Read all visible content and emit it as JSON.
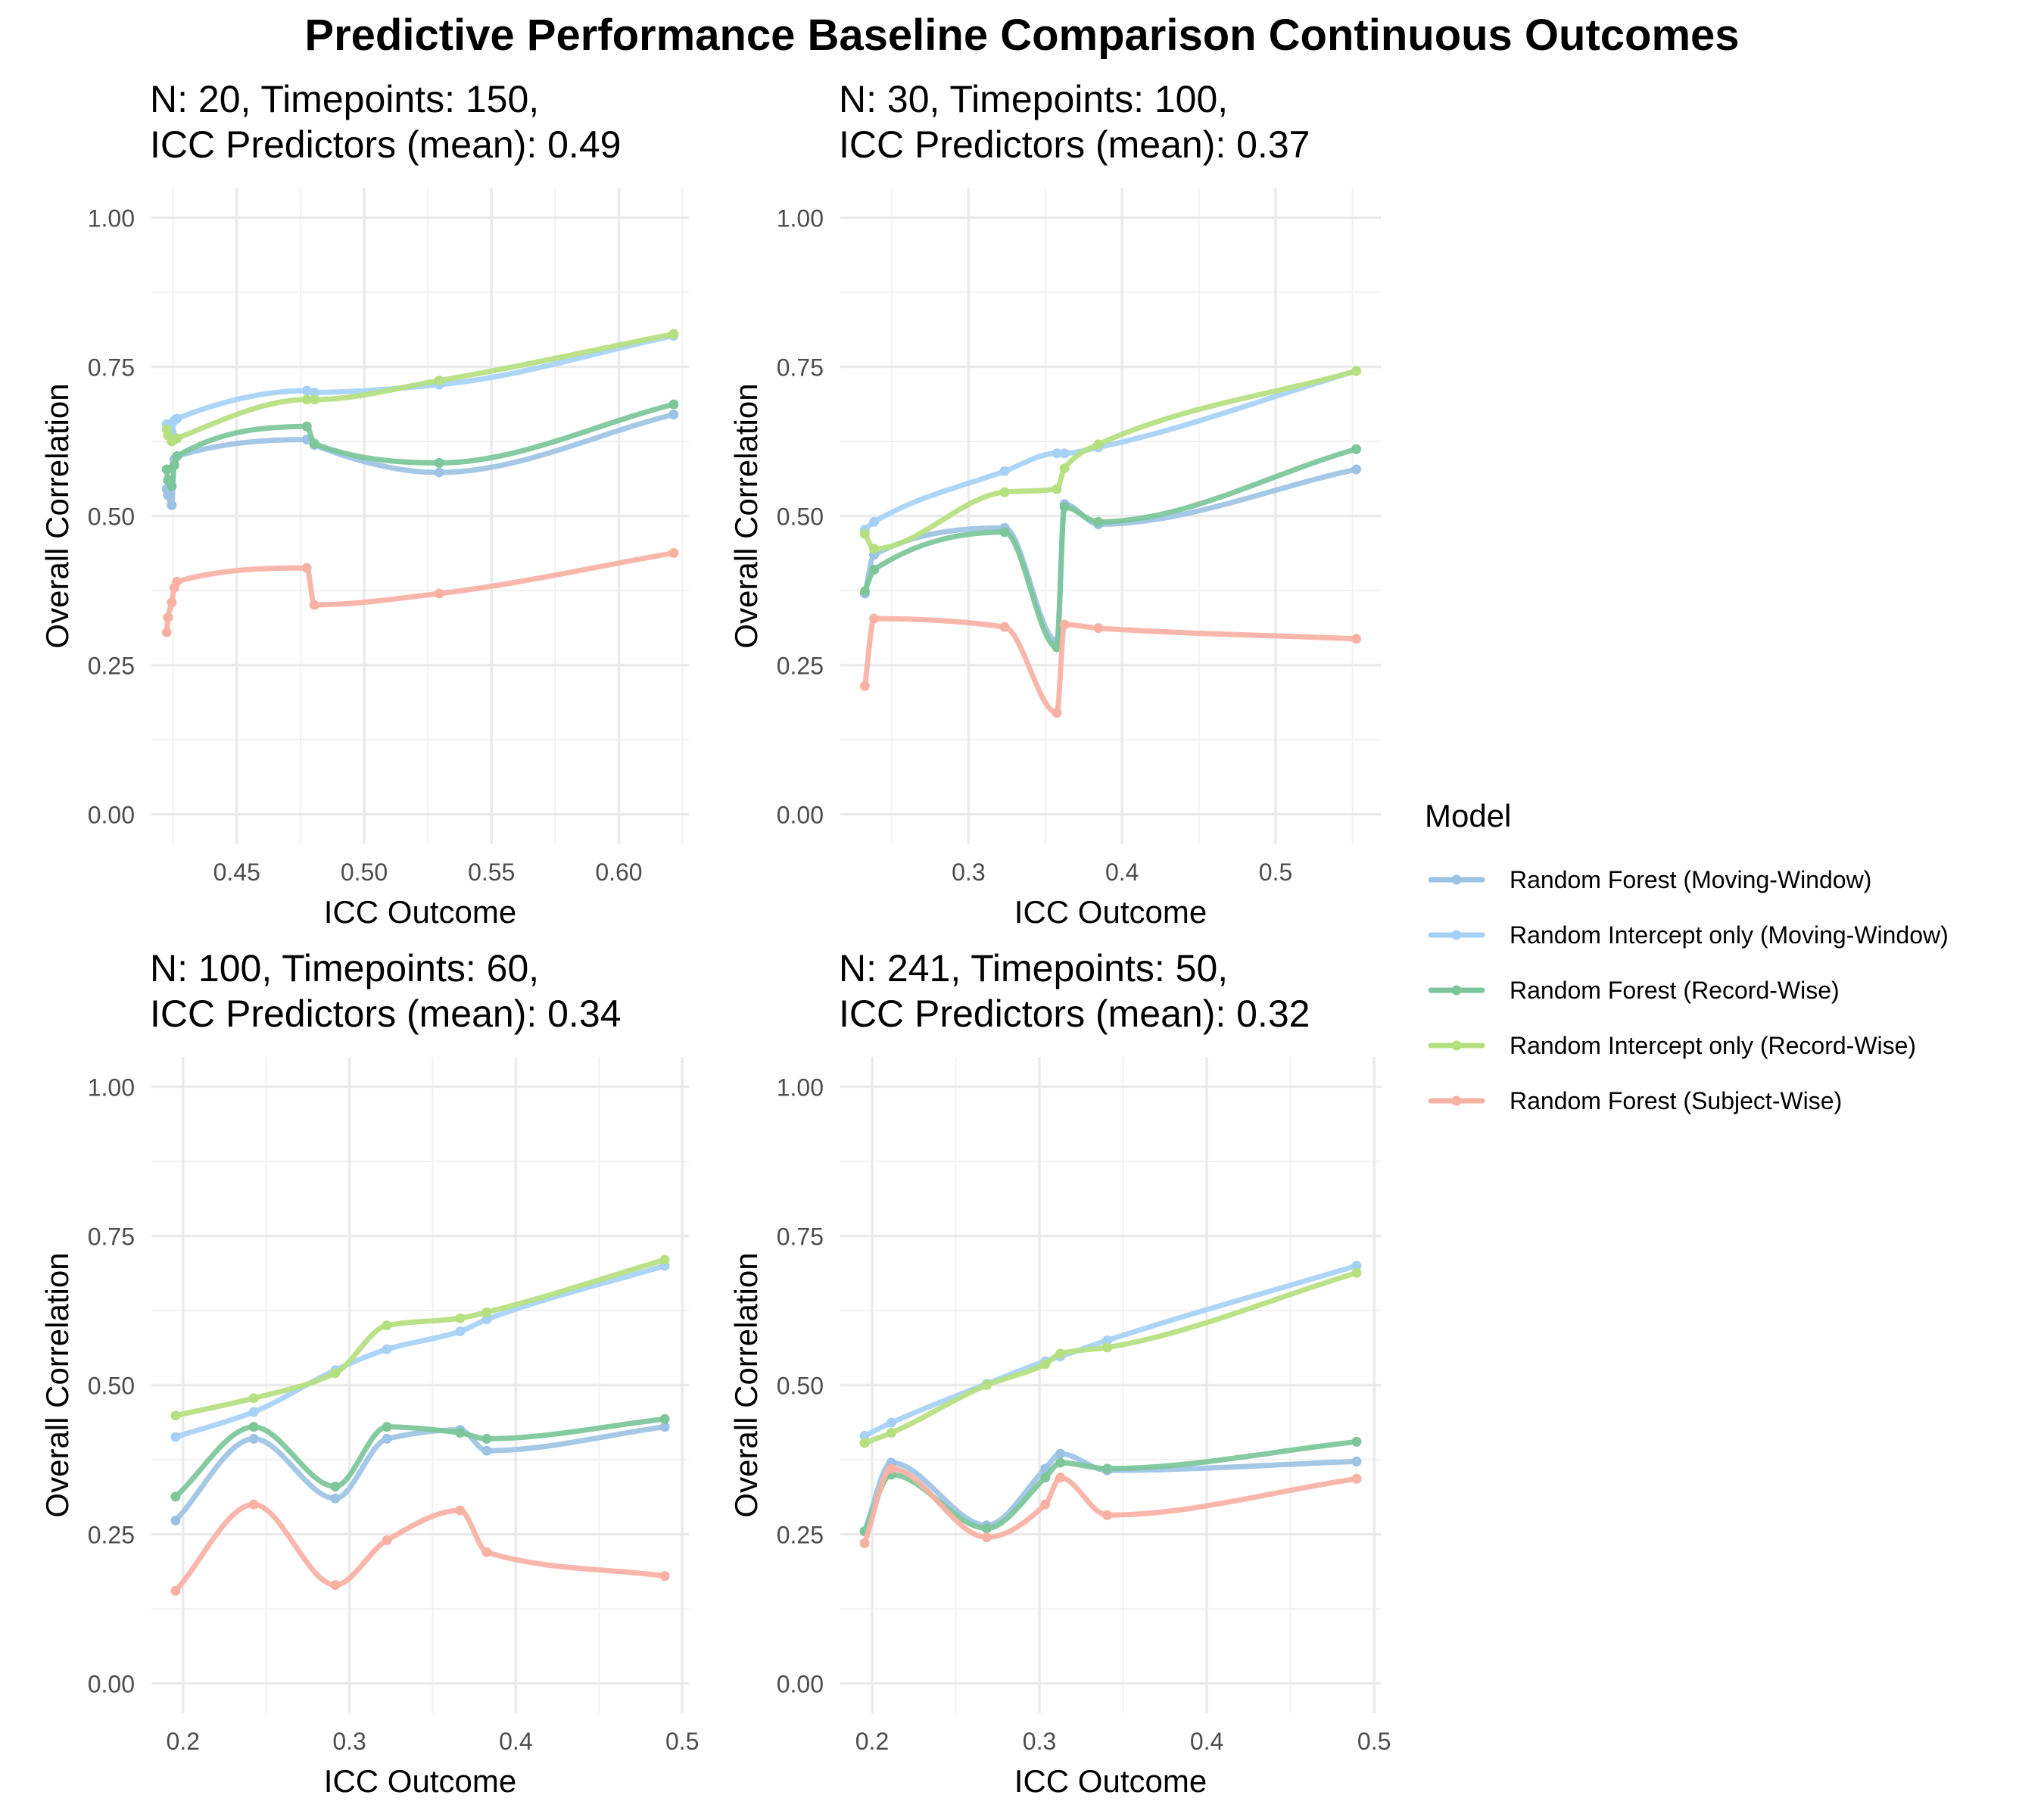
{
  "chart_data": {
    "type": "line",
    "title": "Predictive Performance Baseline Comparison Continuous Outcomes",
    "legend": {
      "title": "Model",
      "placement": "right",
      "entries": [
        {
          "name": "Random Forest (Moving-Window)",
          "color": "#9cc3e4"
        },
        {
          "name": "Random Intercept only (Moving-Window)",
          "color": "#a6d1f7"
        },
        {
          "name": "Random Forest (Record-Wise)",
          "color": "#7cc69a"
        },
        {
          "name": "Random Intercept only (Record-Wise)",
          "color": "#b5e07f"
        },
        {
          "name": "Random Forest (Subject-Wise)",
          "color": "#f9b1a4"
        }
      ]
    },
    "panels": [
      {
        "title_line1": "N: 20, Timepoints: 150,",
        "title_line2": "ICC Predictors (mean): 0.49",
        "xlabel": "ICC Outcome",
        "ylabel": "Overall Correlation",
        "xlim": [
          0.4165,
          0.6275
        ],
        "ylim": [
          -0.05,
          1.05
        ],
        "xticks": [
          {
            "v": 0.45,
            "label": "0.45"
          },
          {
            "v": 0.5,
            "label": "0.50"
          },
          {
            "v": 0.55,
            "label": "0.55"
          },
          {
            "v": 0.6,
            "label": "0.60"
          }
        ],
        "yticks": [
          {
            "v": 0.0,
            "label": "0.00"
          },
          {
            "v": 0.25,
            "label": "0.25"
          },
          {
            "v": 0.5,
            "label": "0.50"
          },
          {
            "v": 0.75,
            "label": "0.75"
          },
          {
            "v": 1.0,
            "label": "1.00"
          }
        ],
        "series": [
          {
            "x": [
              0.4225,
              0.423,
              0.4245,
              0.4255,
              0.4265,
              0.4775,
              0.4805,
              0.5295,
              0.6215
            ],
            "y": [
              0.545,
              0.535,
              0.518,
              0.595,
              0.6,
              0.628,
              0.619,
              0.573,
              0.67
            ]
          },
          {
            "x": [
              0.4225,
              0.423,
              0.4245,
              0.4255,
              0.4265,
              0.4775,
              0.4805,
              0.5295,
              0.6215
            ],
            "y": [
              0.654,
              0.648,
              0.64,
              0.66,
              0.663,
              0.71,
              0.707,
              0.72,
              0.802
            ]
          },
          {
            "x": [
              0.4225,
              0.423,
              0.4245,
              0.4255,
              0.4265,
              0.4775,
              0.4805,
              0.5295,
              0.6215
            ],
            "y": [
              0.578,
              0.56,
              0.55,
              0.585,
              0.6,
              0.65,
              0.621,
              0.589,
              0.687
            ]
          },
          {
            "x": [
              0.4225,
              0.423,
              0.4245,
              0.4255,
              0.4265,
              0.4775,
              0.4805,
              0.5295,
              0.6215
            ],
            "y": [
              0.645,
              0.635,
              0.625,
              0.628,
              0.63,
              0.695,
              0.695,
              0.727,
              0.805
            ]
          },
          {
            "x": [
              0.4225,
              0.423,
              0.4245,
              0.4255,
              0.4265,
              0.4775,
              0.4805,
              0.5295,
              0.6215
            ],
            "y": [
              0.305,
              0.33,
              0.355,
              0.38,
              0.39,
              0.413,
              0.351,
              0.37,
              0.438
            ]
          }
        ]
      },
      {
        "title_line1": "N: 30, Timepoints: 100,",
        "title_line2": "ICC Predictors (mean): 0.37",
        "xlabel": "ICC Outcome",
        "ylabel": "Overall Correlation",
        "xlim": [
          0.2165,
          0.5685
        ],
        "ylim": [
          -0.05,
          1.05
        ],
        "xticks": [
          {
            "v": 0.3,
            "label": "0.3"
          },
          {
            "v": 0.4,
            "label": "0.4"
          },
          {
            "v": 0.5,
            "label": "0.5"
          }
        ],
        "yticks": [
          {
            "v": 0.0,
            "label": "0.00"
          },
          {
            "v": 0.25,
            "label": "0.25"
          },
          {
            "v": 0.5,
            "label": "0.50"
          },
          {
            "v": 0.75,
            "label": "0.75"
          },
          {
            "v": 1.0,
            "label": "1.00"
          }
        ],
        "series": [
          {
            "x": [
              0.2325,
              0.2385,
              0.3235,
              0.3575,
              0.3625,
              0.3845,
              0.5525
            ],
            "y": [
              0.37,
              0.435,
              0.48,
              0.29,
              0.52,
              0.486,
              0.578
            ]
          },
          {
            "x": [
              0.2325,
              0.2385,
              0.3235,
              0.3575,
              0.3625,
              0.3845,
              0.5525
            ],
            "y": [
              0.477,
              0.49,
              0.575,
              0.605,
              0.605,
              0.615,
              0.743
            ]
          },
          {
            "x": [
              0.2325,
              0.2385,
              0.3235,
              0.3575,
              0.3625,
              0.3845,
              0.5525
            ],
            "y": [
              0.374,
              0.41,
              0.473,
              0.28,
              0.515,
              0.49,
              0.612
            ]
          },
          {
            "x": [
              0.2325,
              0.2385,
              0.3235,
              0.3575,
              0.3625,
              0.3845,
              0.5525
            ],
            "y": [
              0.47,
              0.445,
              0.54,
              0.545,
              0.58,
              0.62,
              0.743
            ]
          },
          {
            "x": [
              0.2325,
              0.2385,
              0.3235,
              0.3575,
              0.3625,
              0.3845,
              0.5525
            ],
            "y": [
              0.215,
              0.328,
              0.314,
              0.17,
              0.318,
              0.312,
              0.294
            ]
          }
        ]
      },
      {
        "title_line1": "N: 100, Timepoints: 60,",
        "title_line2": "ICC Predictors (mean): 0.34",
        "xlabel": "ICC Outcome",
        "ylabel": "Overall Correlation",
        "xlim": [
          0.181,
          0.504
        ],
        "ylim": [
          -0.05,
          1.05
        ],
        "xticks": [
          {
            "v": 0.2,
            "label": "0.2"
          },
          {
            "v": 0.3,
            "label": "0.3"
          },
          {
            "v": 0.4,
            "label": "0.4"
          },
          {
            "v": 0.5,
            "label": "0.5"
          }
        ],
        "yticks": [
          {
            "v": 0.0,
            "label": "0.00"
          },
          {
            "v": 0.25,
            "label": "0.25"
          },
          {
            "v": 0.5,
            "label": "0.50"
          },
          {
            "v": 0.75,
            "label": "0.75"
          },
          {
            "v": 1.0,
            "label": "1.00"
          }
        ],
        "series": [
          {
            "x": [
              0.1955,
              0.2425,
              0.2915,
              0.3225,
              0.3665,
              0.3825,
              0.4895
            ],
            "y": [
              0.273,
              0.41,
              0.31,
              0.41,
              0.425,
              0.39,
              0.43
            ]
          },
          {
            "x": [
              0.1955,
              0.2425,
              0.2915,
              0.3225,
              0.3665,
              0.3825,
              0.4895
            ],
            "y": [
              0.413,
              0.455,
              0.525,
              0.56,
              0.59,
              0.61,
              0.7
            ]
          },
          {
            "x": [
              0.1955,
              0.2425,
              0.2915,
              0.3225,
              0.3665,
              0.3825,
              0.4895
            ],
            "y": [
              0.313,
              0.43,
              0.33,
              0.43,
              0.42,
              0.41,
              0.443
            ]
          },
          {
            "x": [
              0.1955,
              0.2425,
              0.2915,
              0.3225,
              0.3665,
              0.3825,
              0.4895
            ],
            "y": [
              0.449,
              0.478,
              0.52,
              0.6,
              0.612,
              0.622,
              0.71
            ]
          },
          {
            "x": [
              0.1955,
              0.2425,
              0.2915,
              0.3225,
              0.3665,
              0.3825,
              0.4895
            ],
            "y": [
              0.155,
              0.3,
              0.165,
              0.24,
              0.29,
              0.22,
              0.18
            ]
          }
        ]
      },
      {
        "title_line1": "N: 241, Timepoints: 50,",
        "title_line2": "ICC Predictors (mean): 0.32",
        "xlabel": "ICC Outcome",
        "ylabel": "Overall Correlation",
        "xlim": [
          0.181,
          0.504
        ],
        "ylim": [
          -0.05,
          1.05
        ],
        "xticks": [
          {
            "v": 0.2,
            "label": "0.2"
          },
          {
            "v": 0.3,
            "label": "0.3"
          },
          {
            "v": 0.4,
            "label": "0.4"
          },
          {
            "v": 0.5,
            "label": "0.5"
          }
        ],
        "yticks": [
          {
            "v": 0.0,
            "label": "0.00"
          },
          {
            "v": 0.25,
            "label": "0.25"
          },
          {
            "v": 0.5,
            "label": "0.50"
          },
          {
            "v": 0.75,
            "label": "0.75"
          },
          {
            "v": 1.0,
            "label": "1.00"
          }
        ],
        "series": [
          {
            "x": [
              0.1955,
              0.2115,
              0.2685,
              0.3035,
              0.3125,
              0.3405,
              0.4895
            ],
            "y": [
              0.255,
              0.37,
              0.265,
              0.36,
              0.385,
              0.357,
              0.372
            ]
          },
          {
            "x": [
              0.1955,
              0.2115,
              0.2685,
              0.3035,
              0.3125,
              0.3405,
              0.4895
            ],
            "y": [
              0.415,
              0.437,
              0.502,
              0.54,
              0.548,
              0.575,
              0.7
            ]
          },
          {
            "x": [
              0.1955,
              0.2115,
              0.2685,
              0.3035,
              0.3125,
              0.3405,
              0.4895
            ],
            "y": [
              0.255,
              0.35,
              0.26,
              0.345,
              0.37,
              0.36,
              0.405
            ]
          },
          {
            "x": [
              0.1955,
              0.2115,
              0.2685,
              0.3035,
              0.3125,
              0.3405,
              0.4895
            ],
            "y": [
              0.403,
              0.42,
              0.5,
              0.535,
              0.553,
              0.563,
              0.688
            ]
          },
          {
            "x": [
              0.1955,
              0.2115,
              0.2685,
              0.3035,
              0.3125,
              0.3405,
              0.4895
            ],
            "y": [
              0.235,
              0.36,
              0.245,
              0.3,
              0.345,
              0.282,
              0.343
            ]
          }
        ]
      }
    ]
  }
}
